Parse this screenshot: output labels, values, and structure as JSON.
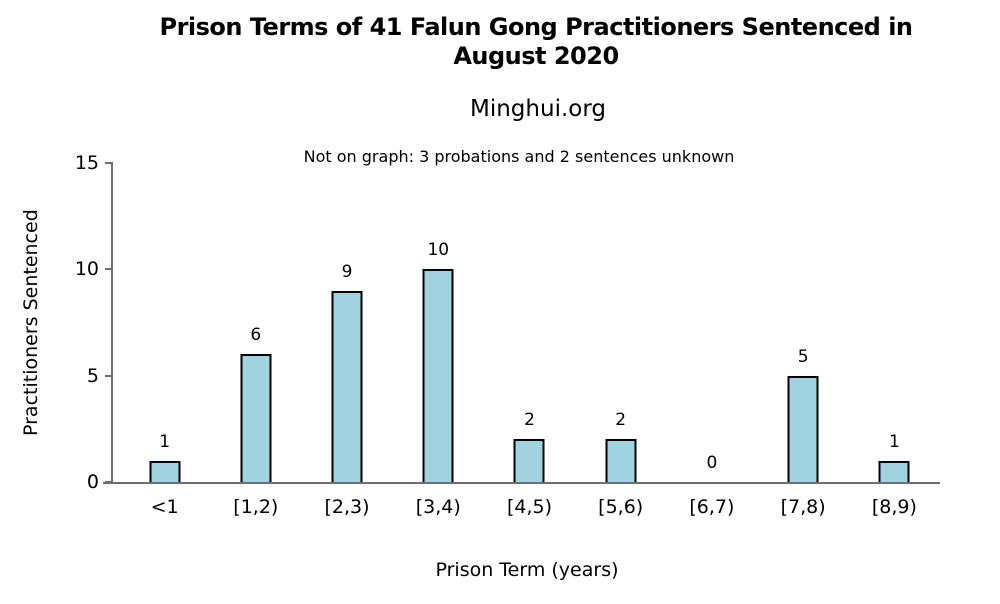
{
  "page": {
    "background_color": "#ffffff"
  },
  "chart_data": {
    "type": "bar",
    "title": "Prison Terms of 41 Falun Gong Practitioners Sentenced in August 2020",
    "title_lines": [
      "Prison Terms of 41 Falun Gong Practitioners Sentenced in",
      "August 2020"
    ],
    "subtitle": "Minghui.org",
    "annotation": "Not on graph: 3 probations and 2 sentences unknown",
    "xlabel": "Prison Term (years)",
    "ylabel": "Practitioners Sentenced",
    "categories": [
      "<1",
      "[1,2)",
      "[2,3)",
      "[3,4)",
      "[4,5)",
      "[5,6)",
      "[6,7)",
      "[7,8)",
      "[8,9)"
    ],
    "values": [
      1,
      6,
      9,
      10,
      2,
      2,
      0,
      5,
      1
    ],
    "ylim": [
      0,
      15
    ],
    "yticks": [
      0,
      5,
      10,
      15
    ],
    "grid": false,
    "legend": false,
    "data_labels": true,
    "bar_fill_color": "#A0D2DF",
    "bar_border_color": "#000000",
    "axis_color": "#6e6e6e",
    "text_color": "#000000"
  }
}
